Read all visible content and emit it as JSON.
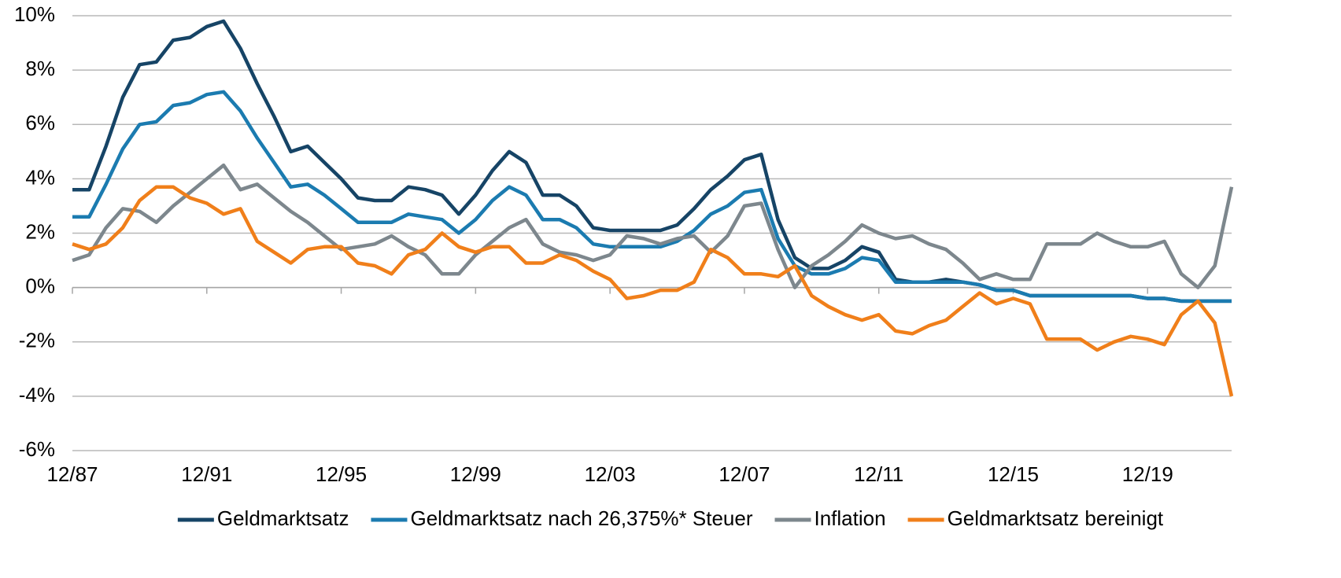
{
  "chart_data": {
    "type": "line",
    "categories": [
      "12/87",
      null,
      null,
      null,
      null,
      null,
      null,
      null,
      "12/91",
      null,
      null,
      null,
      null,
      null,
      null,
      null,
      "12/95",
      null,
      null,
      null,
      null,
      null,
      null,
      null,
      "12/99",
      null,
      null,
      null,
      null,
      null,
      null,
      null,
      "12/03",
      null,
      null,
      null,
      null,
      null,
      null,
      null,
      "12/07",
      null,
      null,
      null,
      null,
      null,
      null,
      null,
      "12/11",
      null,
      null,
      null,
      null,
      null,
      null,
      null,
      "12/15",
      null,
      null,
      null,
      null,
      null,
      null,
      null,
      "12/19",
      null,
      null,
      null,
      null,
      null
    ],
    "series": [
      {
        "name": "Geldmarktsatz",
        "color": "#164466",
        "values": [
          3.6,
          3.6,
          5.2,
          7.0,
          8.2,
          8.3,
          9.1,
          9.2,
          9.6,
          9.8,
          8.8,
          7.5,
          6.3,
          5.0,
          5.2,
          4.6,
          4.0,
          3.3,
          3.2,
          3.2,
          3.7,
          3.6,
          3.4,
          2.7,
          3.4,
          4.3,
          5.0,
          4.6,
          3.4,
          3.4,
          3.0,
          2.2,
          2.1,
          2.1,
          2.1,
          2.1,
          2.3,
          2.9,
          3.6,
          4.1,
          4.7,
          4.9,
          2.5,
          1.1,
          0.7,
          0.7,
          1.0,
          1.5,
          1.3,
          0.3,
          0.2,
          0.2,
          0.3,
          0.2,
          0.1,
          -0.1,
          -0.1,
          -0.3,
          -0.3,
          -0.3,
          -0.3,
          -0.3,
          -0.3,
          -0.3,
          -0.4,
          -0.4,
          -0.5,
          -0.5,
          -0.5,
          -0.5
        ]
      },
      {
        "name": "Geldmarktsatz nach 26,375%* Steuer",
        "color": "#1b7bb0",
        "values": [
          2.6,
          2.6,
          3.8,
          5.1,
          6.0,
          6.1,
          6.7,
          6.8,
          7.1,
          7.2,
          6.5,
          5.5,
          4.6,
          3.7,
          3.8,
          3.4,
          2.9,
          2.4,
          2.4,
          2.4,
          2.7,
          2.6,
          2.5,
          2.0,
          2.5,
          3.2,
          3.7,
          3.4,
          2.5,
          2.5,
          2.2,
          1.6,
          1.5,
          1.5,
          1.5,
          1.5,
          1.7,
          2.1,
          2.7,
          3.0,
          3.5,
          3.6,
          1.8,
          0.8,
          0.5,
          0.5,
          0.7,
          1.1,
          1.0,
          0.2,
          0.2,
          0.2,
          0.2,
          0.2,
          0.1,
          -0.1,
          -0.1,
          -0.3,
          -0.3,
          -0.3,
          -0.3,
          -0.3,
          -0.3,
          -0.3,
          -0.4,
          -0.4,
          -0.5,
          -0.5,
          -0.5,
          -0.5
        ]
      },
      {
        "name": "Inflation",
        "color": "#7d878d",
        "values": [
          1.0,
          1.2,
          2.2,
          2.9,
          2.8,
          2.4,
          3.0,
          3.5,
          4.0,
          4.5,
          3.6,
          3.8,
          3.3,
          2.8,
          2.4,
          1.9,
          1.4,
          1.5,
          1.6,
          1.9,
          1.5,
          1.2,
          0.5,
          0.5,
          1.2,
          1.7,
          2.2,
          2.5,
          1.6,
          1.3,
          1.2,
          1.0,
          1.2,
          1.9,
          1.8,
          1.6,
          1.8,
          1.9,
          1.3,
          1.9,
          3.0,
          3.1,
          1.4,
          0.0,
          0.8,
          1.2,
          1.7,
          2.3,
          2.0,
          1.8,
          1.9,
          1.6,
          1.4,
          0.9,
          0.3,
          0.5,
          0.3,
          0.3,
          1.6,
          1.6,
          1.6,
          2.0,
          1.7,
          1.5,
          1.5,
          1.7,
          0.5,
          0.0,
          0.8,
          3.7
        ]
      },
      {
        "name": "Geldmarktsatz bereinigt",
        "color": "#f07f1a",
        "values": [
          1.6,
          1.4,
          1.6,
          2.2,
          3.2,
          3.7,
          3.7,
          3.3,
          3.1,
          2.7,
          2.9,
          1.7,
          1.3,
          0.9,
          1.4,
          1.5,
          1.5,
          0.9,
          0.8,
          0.5,
          1.2,
          1.4,
          2.0,
          1.5,
          1.3,
          1.5,
          1.5,
          0.9,
          0.9,
          1.2,
          1.0,
          0.6,
          0.3,
          -0.4,
          -0.3,
          -0.1,
          -0.1,
          0.2,
          1.4,
          1.1,
          0.5,
          0.5,
          0.4,
          0.8,
          -0.3,
          -0.7,
          -1.0,
          -1.2,
          -1.0,
          -1.6,
          -1.7,
          -1.4,
          -1.2,
          -0.7,
          -0.2,
          -0.6,
          -0.4,
          -0.6,
          -1.9,
          -1.9,
          -1.9,
          -2.3,
          -2.0,
          -1.8,
          -1.9,
          -2.1,
          -1.0,
          -0.5,
          -1.3,
          -4.0
        ]
      }
    ],
    "ylim": [
      -6,
      10
    ],
    "yticks": [
      {
        "value": -6,
        "label": "-6%"
      },
      {
        "value": -4,
        "label": "-4%"
      },
      {
        "value": -2,
        "label": "-2%"
      },
      {
        "value": 0,
        "label": "0%"
      },
      {
        "value": 2,
        "label": "2%"
      },
      {
        "value": 4,
        "label": "4%"
      },
      {
        "value": 6,
        "label": "6%"
      },
      {
        "value": 8,
        "label": "8%"
      },
      {
        "value": 10,
        "label": "10%"
      }
    ],
    "grid": true
  }
}
